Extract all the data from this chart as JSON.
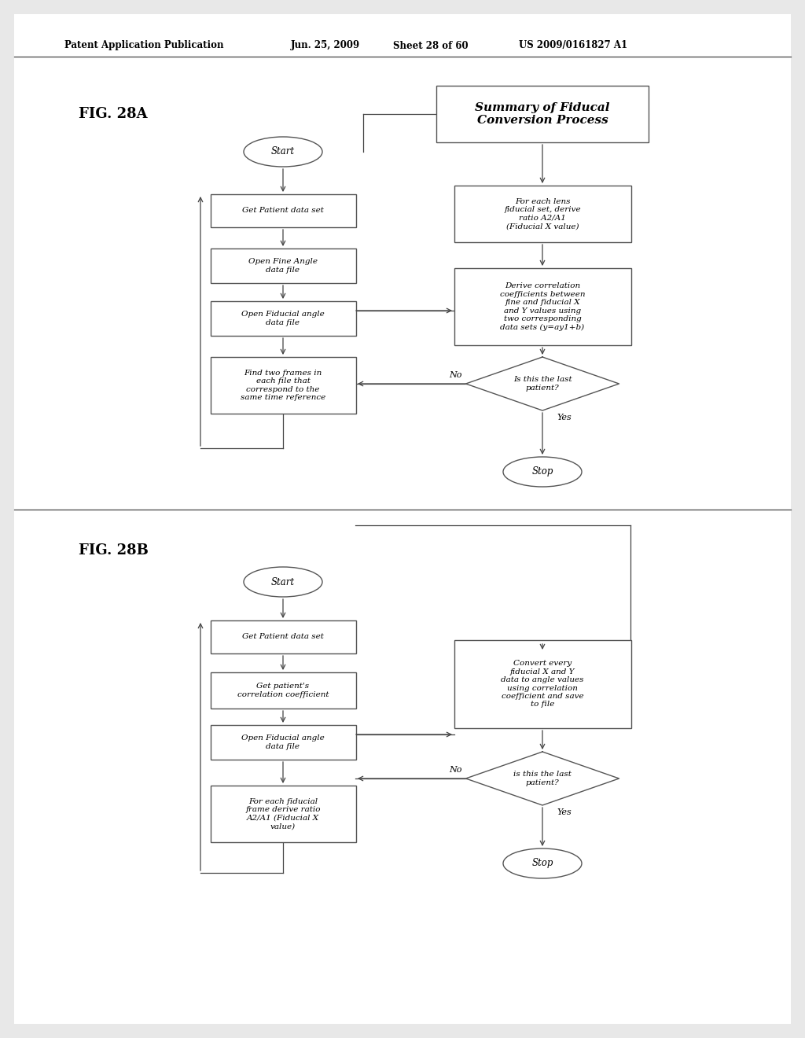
{
  "bg_color": "#e8e8e8",
  "inner_bg": "#ffffff",
  "header_text1": "Patent Application Publication",
  "header_text2": "Jun. 25, 2009",
  "header_text3": "Sheet 28 of 60",
  "header_text4": "US 2009/0161827 A1",
  "fig28a_label": "FIG. 28A",
  "fig28b_label": "FIG. 28B",
  "summary_box_text": "Summary of Fiducal\nConversion Process",
  "fig28a_left_boxes": [
    "Get Patient data set",
    "Open Fine Angle\ndata file",
    "Open Fiducial angle\ndata file",
    "Find two frames in\neach file that\ncorrespond to the\nsame time reference"
  ],
  "fig28a_right_boxes": [
    "For each lens\nfiducial set, derive\nratio A2/A1\n(Fiducial X value)",
    "Derive correlation\ncoefficients between\nfine and fiducial X\nand Y values using\ntwo corresponding\ndata sets (y=ay1+b)"
  ],
  "fig28a_diamond": "Is this the last\npatient?",
  "fig28b_left_boxes": [
    "Get Patient data set",
    "Get patient's\ncorrelation coefficient",
    "Open Fiducial angle\ndata file",
    "For each fiducial\nframe derive ratio\nA2/A1 (Fiducial X\nvalue)"
  ],
  "fig28b_right_boxes": [
    "Convert every\nfiducial X and Y\ndata to angle values\nusing correlation\ncoefficient and save\nto file"
  ],
  "fig28b_diamond": "is this the last\npatient?",
  "no_label": "No",
  "yes_label": "Yes",
  "start_label": "Start",
  "stop_label": "Stop"
}
